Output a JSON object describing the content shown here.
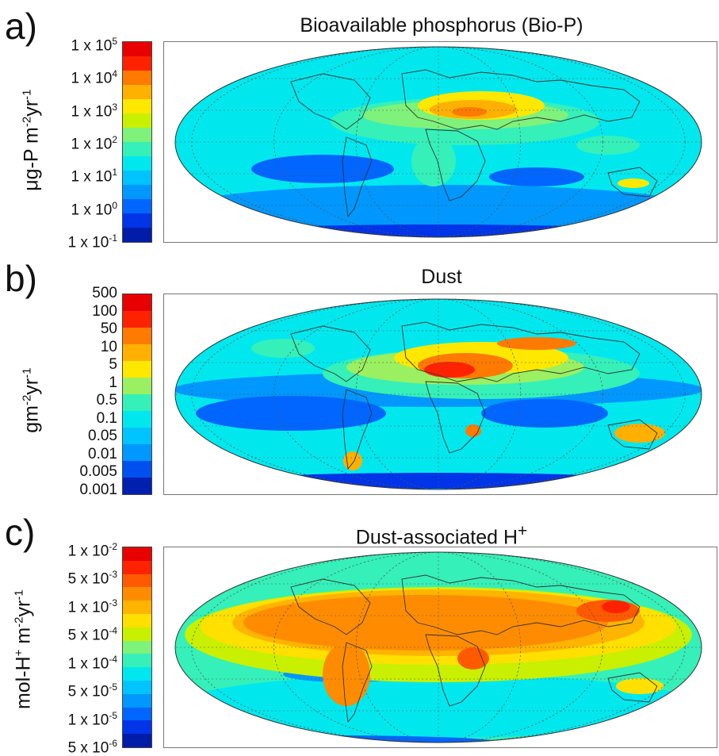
{
  "panels": [
    {
      "letter": "a)",
      "title": "Bioavailable phosphorus (Bio-P)",
      "ylabel_html": "&mu;g-P m<sup>-2</sup>yr<sup>-1</sup>",
      "ylabel": "μg-P m-2yr-1",
      "ticks_html": [
        "1 x 10<sup>5</sup>",
        "1 x 10<sup>4</sup>",
        "1 x 10<sup>3</sup>",
        "1 x 10<sup>2</sup>",
        "1 x 10<sup>1</sup>",
        "1 x 10<sup>0</sup>",
        "1 x 10<sup>-1</sup>"
      ],
      "colors": [
        "#e80000",
        "#ff2200",
        "#ff7a00",
        "#ffb000",
        "#ffe800",
        "#c8f000",
        "#7ef27a",
        "#35f0b8",
        "#00e8ee",
        "#00c4ff",
        "#0098ff",
        "#0066ff",
        "#0034e8",
        "#001ca8"
      ]
    },
    {
      "letter": "b)",
      "title": "Dust",
      "ylabel_html": "gm<sup>-2</sup>yr<sup>-1</sup>",
      "ylabel": "gm-2yr-1",
      "ticks_html": [
        "500",
        "100",
        "50",
        "10",
        "5",
        "1",
        "0.5",
        "0.1",
        "0.05",
        "0.01",
        "0.005",
        "0.001"
      ],
      "colors": [
        "#e80000",
        "#ff2200",
        "#ff7a00",
        "#ffb000",
        "#ffe800",
        "#9af060",
        "#35f0b8",
        "#00e8ee",
        "#00c4ff",
        "#0098ff",
        "#0050f0",
        "#0020b0"
      ]
    },
    {
      "letter": "c)",
      "title_html": "Dust-associated H<sup>+</sup>",
      "title": "Dust-associated H+",
      "ylabel_html": "mol-H<sup>+</sup> m<sup>-2</sup>yr<sup>-1</sup>",
      "ylabel": "mol-H+ m-2yr-1",
      "ticks_html": [
        "1 x 10<sup>-2</sup>",
        "5 x 10<sup>-3</sup>",
        "1 x 10<sup>-3</sup>",
        "5 x 10<sup>-4</sup>",
        "1 x 10<sup>-4</sup>",
        "5 x 10<sup>-5</sup>",
        "1 x 10<sup>-5</sup>",
        "5 x 10<sup>-6</sup>"
      ],
      "colors": [
        "#e80000",
        "#ff2200",
        "#ff5a00",
        "#ff8c00",
        "#ffb400",
        "#ffe000",
        "#c8f000",
        "#7ef27a",
        "#35f0b8",
        "#00e8ee",
        "#00c4ff",
        "#0098ff",
        "#0066ff",
        "#0034e8",
        "#001ca8"
      ]
    }
  ],
  "map_projection": "Mollweide"
}
